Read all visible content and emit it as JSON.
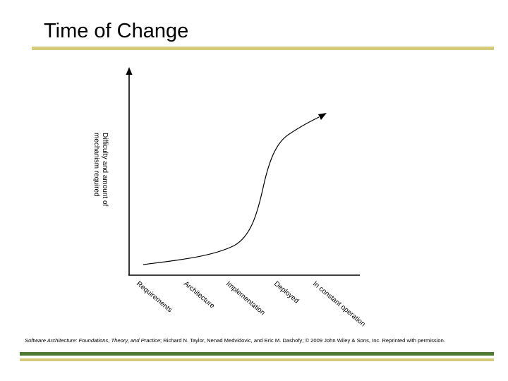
{
  "slide": {
    "title": "Time of Change",
    "caption_italic": "Software Architecture: Foundations, Theory, and Practice",
    "caption_rest": "; Richard N. Taylor, Nenad Medvidovic, and Eric M. Dashofy; © 2009 John Wiley & Sons, Inc. Reprinted with permission."
  },
  "diagram": {
    "y_axis_label_line1": "Difficulty and amount of",
    "y_axis_label_line2": "mechanism required",
    "phases": [
      "Requirements",
      "Architecture",
      "Implementation",
      "Deployed",
      "In constant operation"
    ]
  },
  "colors": {
    "accent_tan": "#d6cb7d",
    "accent_green": "#4f7a34",
    "line": "#000000"
  }
}
